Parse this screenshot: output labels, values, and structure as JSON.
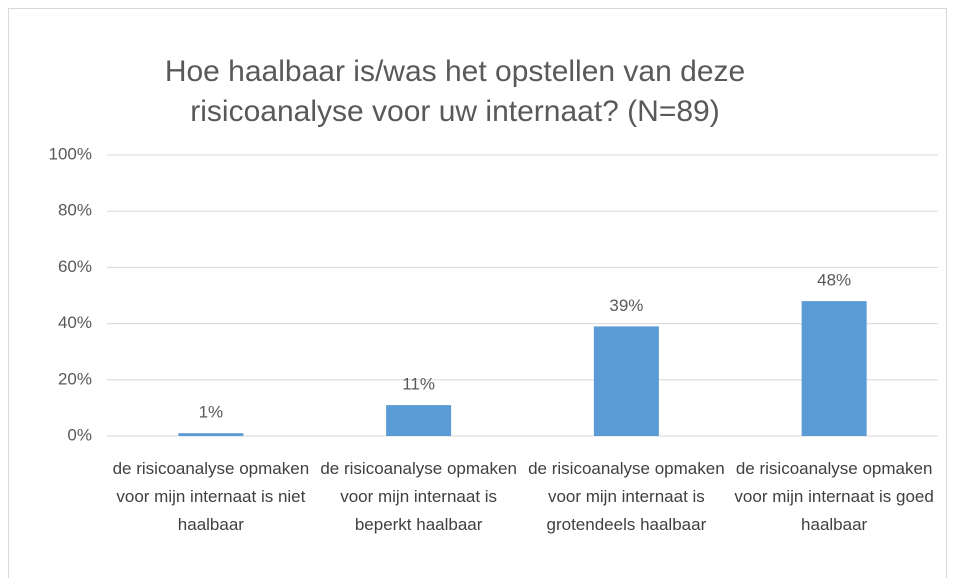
{
  "chart_data": {
    "type": "bar",
    "title": "Hoe haalbaar is/was het opstellen van deze risicoanalyse voor uw internaat? (N=89)",
    "categories": [
      "de risicoanalyse opmaken voor mijn internaat is niet haalbaar",
      "de risicoanalyse opmaken voor mijn internaat is beperkt haalbaar",
      "de risicoanalyse opmaken voor mijn internaat is grotendeels haalbaar",
      "de risicoanalyse opmaken voor mijn internaat is goed haalbaar"
    ],
    "values": [
      1,
      11,
      39,
      48
    ],
    "value_labels": [
      "1%",
      "11%",
      "39%",
      "48%"
    ],
    "color": "#5b9bd5",
    "ylim": [
      0,
      100
    ],
    "yticks": [
      {
        "value": 0,
        "label": "0%"
      },
      {
        "value": 20,
        "label": "20%"
      },
      {
        "value": 40,
        "label": "40%"
      },
      {
        "value": 60,
        "label": "60%"
      },
      {
        "value": 80,
        "label": "80%"
      },
      {
        "value": 100,
        "label": "100%"
      }
    ],
    "grid": true
  }
}
